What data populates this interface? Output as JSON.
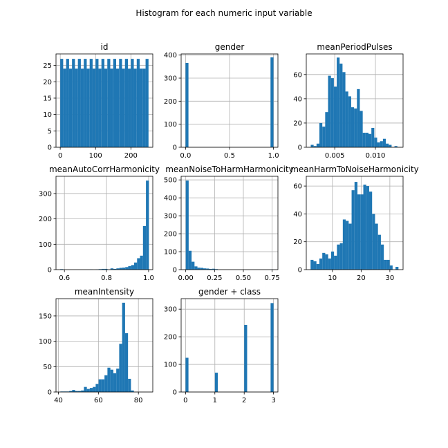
{
  "figure_title": "Histogram for each numeric input variable",
  "colors": {
    "bars": "#1f77b4",
    "grid": "#b0b0b0",
    "background": "#ffffff"
  },
  "chart_data": [
    {
      "type": "bar",
      "title": "id",
      "grid": true,
      "xlim": [
        -12,
        262
      ],
      "ylim": [
        0,
        28.5
      ],
      "xticks": [
        0,
        100,
        200
      ],
      "xticklabels": [
        "0",
        "100",
        "200"
      ],
      "yticks": [
        0,
        5,
        10,
        15,
        20,
        25
      ],
      "yticklabels": [
        "0",
        "5",
        "10",
        "15",
        "20",
        "25"
      ],
      "bin_start": 0,
      "bin_width": 8.33,
      "values": [
        27,
        24,
        27,
        24,
        27,
        24,
        27,
        24,
        27,
        24,
        27,
        24,
        27,
        24,
        27,
        24,
        27,
        24,
        27,
        24,
        27,
        24,
        27,
        24,
        27,
        24,
        27,
        24,
        24,
        27
      ]
    },
    {
      "type": "bar",
      "title": "gender",
      "grid": true,
      "xlim": [
        -0.05,
        1.05
      ],
      "ylim": [
        0,
        405
      ],
      "xticks": [
        0,
        0.5,
        1
      ],
      "xticklabels": [
        "0.0",
        "0.5",
        "1.0"
      ],
      "yticks": [
        0,
        100,
        200,
        300,
        400
      ],
      "yticklabels": [
        "0",
        "100",
        "200",
        "300",
        "400"
      ],
      "bin_start": 0,
      "bin_width": 0.0333,
      "values": [
        366,
        0,
        0,
        0,
        0,
        0,
        0,
        0,
        0,
        0,
        0,
        0,
        0,
        0,
        0,
        0,
        0,
        0,
        0,
        0,
        0,
        0,
        0,
        0,
        0,
        0,
        0,
        0,
        0,
        390
      ]
    },
    {
      "type": "bar",
      "title": "meanPeriodPulses",
      "grid": true,
      "xlim": [
        0.0015,
        0.0134
      ],
      "ylim": [
        0,
        77
      ],
      "xticks": [
        0.005,
        0.01
      ],
      "xticklabels": [
        "0.005",
        "0.010"
      ],
      "yticks": [
        0,
        20,
        40,
        60
      ],
      "yticklabels": [
        "0",
        "20",
        "40",
        "60"
      ],
      "bin_start": 0.00205,
      "bin_width": 0.000355,
      "values": [
        2,
        1,
        3,
        20,
        17,
        29,
        59,
        57,
        50,
        74,
        69,
        62,
        46,
        42,
        33,
        32,
        48,
        30,
        12,
        12,
        11,
        16,
        8,
        4,
        5,
        7,
        3,
        2,
        0,
        1
      ]
    },
    {
      "type": "bar",
      "title": "meanAutoCorrHarmonicity",
      "grid": true,
      "xlim": [
        0.56,
        1.02
      ],
      "ylim": [
        0,
        368
      ],
      "xticks": [
        0.6,
        0.8,
        1.0
      ],
      "xticklabels": [
        "0.6",
        "0.8",
        "1.0"
      ],
      "yticks": [
        0,
        100,
        200,
        300
      ],
      "yticklabels": [
        "0",
        "100",
        "200",
        "300"
      ],
      "bin_start": 0.58,
      "bin_width": 0.01405,
      "values": [
        2,
        0,
        0,
        0,
        0,
        0,
        0,
        0,
        0,
        0,
        1,
        0,
        1,
        2,
        3,
        3,
        1,
        5,
        3,
        5,
        7,
        8,
        10,
        14,
        18,
        28,
        45,
        55,
        172,
        351
      ]
    },
    {
      "type": "bar",
      "title": "meanNoiseToHarmHarmonicity",
      "grid": true,
      "xlim": [
        -0.04,
        0.8
      ],
      "ylim": [
        0,
        520
      ],
      "xticks": [
        0,
        0.25,
        0.5,
        0.75
      ],
      "xticklabels": [
        "0.00",
        "0.25",
        "0.50",
        "0.75"
      ],
      "yticks": [
        0,
        100,
        200,
        300,
        400,
        500
      ],
      "yticklabels": [
        "0",
        "100",
        "200",
        "300",
        "400",
        "500"
      ],
      "bin_start": 0,
      "bin_width": 0.02534,
      "values": [
        496,
        105,
        44,
        18,
        11,
        10,
        7,
        6,
        4,
        5,
        3,
        0,
        0,
        0,
        0,
        0,
        0,
        0,
        0,
        0,
        0,
        0,
        0,
        0,
        0,
        0,
        0,
        0,
        0,
        1
      ]
    },
    {
      "type": "bar",
      "title": "meanHarmToNoiseHarmonicity",
      "grid": true,
      "xlim": [
        0.9,
        34.6
      ],
      "ylim": [
        0,
        67
      ],
      "xticks": [
        10,
        20,
        30
      ],
      "xticklabels": [
        "10",
        "20",
        "30"
      ],
      "yticks": [
        0,
        20,
        40,
        60
      ],
      "yticklabels": [
        "0",
        "20",
        "40",
        "60"
      ],
      "bin_start": 2.4,
      "bin_width": 1.02,
      "values": [
        7,
        6,
        4,
        8,
        12,
        11,
        8,
        13,
        10,
        18,
        19,
        36,
        35,
        33,
        57,
        63,
        54,
        54,
        61,
        60,
        56,
        40,
        33,
        25,
        18,
        7,
        7,
        3,
        0,
        2
      ]
    },
    {
      "type": "bar",
      "title": "meanIntensity",
      "grid": true,
      "xlim": [
        38.8,
        87.2
      ],
      "ylim": [
        0,
        184
      ],
      "xticks": [
        40,
        60,
        80
      ],
      "xticklabels": [
        "40",
        "60",
        "80"
      ],
      "yticks": [
        0,
        50,
        100,
        150
      ],
      "yticklabels": [
        "0",
        "50",
        "100",
        "150"
      ],
      "bin_start": 41,
      "bin_width": 1.47,
      "values": [
        1,
        1,
        1,
        2,
        4,
        2,
        2,
        3,
        10,
        6,
        8,
        10,
        16,
        25,
        25,
        33,
        48,
        44,
        37,
        46,
        95,
        176,
        116,
        26,
        3,
        0,
        0,
        0,
        0,
        0
      ]
    },
    {
      "type": "bar",
      "title": "gender + class",
      "grid": true,
      "xlim": [
        -0.15,
        3.15
      ],
      "ylim": [
        0,
        338
      ],
      "xticks": [
        0,
        1,
        2,
        3
      ],
      "xticklabels": [
        "0",
        "1",
        "2",
        "3"
      ],
      "yticks": [
        0,
        100,
        200,
        300
      ],
      "yticklabels": [
        "0",
        "100",
        "200",
        "300"
      ],
      "bin_start": 0,
      "bin_width": 0.1,
      "values": [
        124,
        0,
        0,
        0,
        0,
        0,
        0,
        0,
        0,
        0,
        70,
        0,
        0,
        0,
        0,
        0,
        0,
        0,
        0,
        0,
        243,
        0,
        0,
        0,
        0,
        0,
        0,
        0,
        0,
        322
      ]
    }
  ]
}
